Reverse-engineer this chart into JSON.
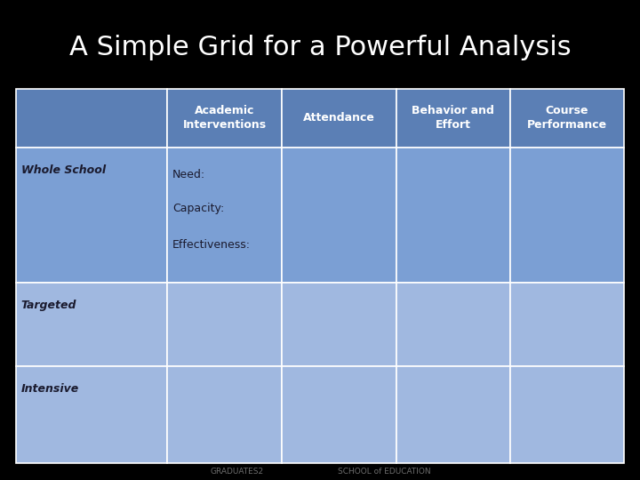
{
  "title": "A Simple Grid for a Powerful Analysis",
  "title_color": "#ffffff",
  "title_fontsize": 22,
  "background_color": "#000000",
  "header_bg": "#5b7fb5",
  "header_text_color": "#ffffff",
  "row_bg_dark": "#7b9fd4",
  "row_bg_light": "#a0b8e0",
  "cell_border_color": "#ffffff",
  "col_labels": [
    "Academic\nInterventions",
    "Attendance",
    "Behavior and\nEffort",
    "Course\nPerformance"
  ],
  "row_labels": [
    "Whole School",
    "Targeted",
    "Intensive"
  ],
  "whole_school_content": [
    "Need:",
    "Capacity:",
    "Effectiveness:"
  ],
  "label_fontsize": 9,
  "cell_fontsize": 9,
  "row_label_fontsize": 9
}
